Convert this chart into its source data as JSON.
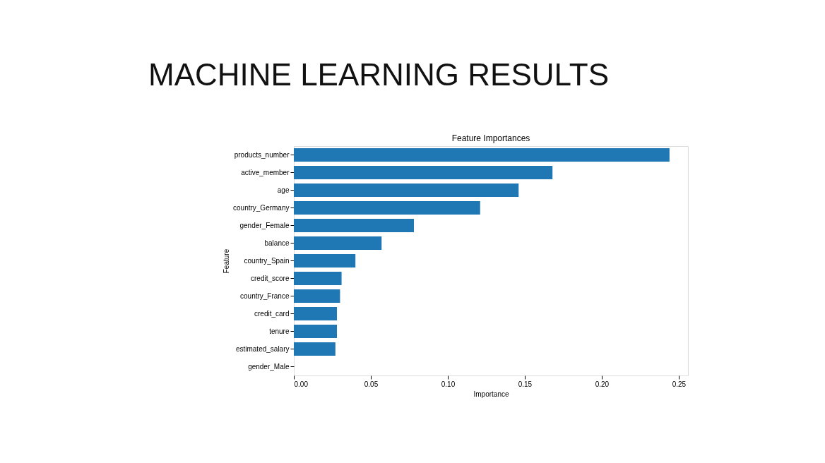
{
  "chart_data": {
    "type": "bar",
    "orientation": "horizontal",
    "title": "MACHINE LEARNING RESULTS",
    "subtitle": "Feature Importances",
    "xlabel": "Importance",
    "ylabel": "Feature",
    "categories": [
      "products_number",
      "active_member",
      "age",
      "country_Germany",
      "gender_Female",
      "balance",
      "country_Spain",
      "credit_score",
      "country_France",
      "credit_card",
      "tenure",
      "estimated_salary",
      "gender_Male"
    ],
    "values": [
      0.244,
      0.168,
      0.146,
      0.121,
      0.078,
      0.057,
      0.04,
      0.031,
      0.03,
      0.028,
      0.028,
      0.027,
      0
    ],
    "color": "#1f77b4",
    "xlim": [
      0,
      0.256
    ],
    "xticks": [
      {
        "value": 0,
        "label": "0.00"
      },
      {
        "value": 0.05,
        "label": "0.05"
      },
      {
        "value": 0.1,
        "label": "0.10"
      },
      {
        "value": 0.15,
        "label": "0.15"
      },
      {
        "value": 0.2,
        "label": "0.20"
      },
      {
        "value": 0.25,
        "label": "0.25"
      }
    ],
    "grid": false
  }
}
